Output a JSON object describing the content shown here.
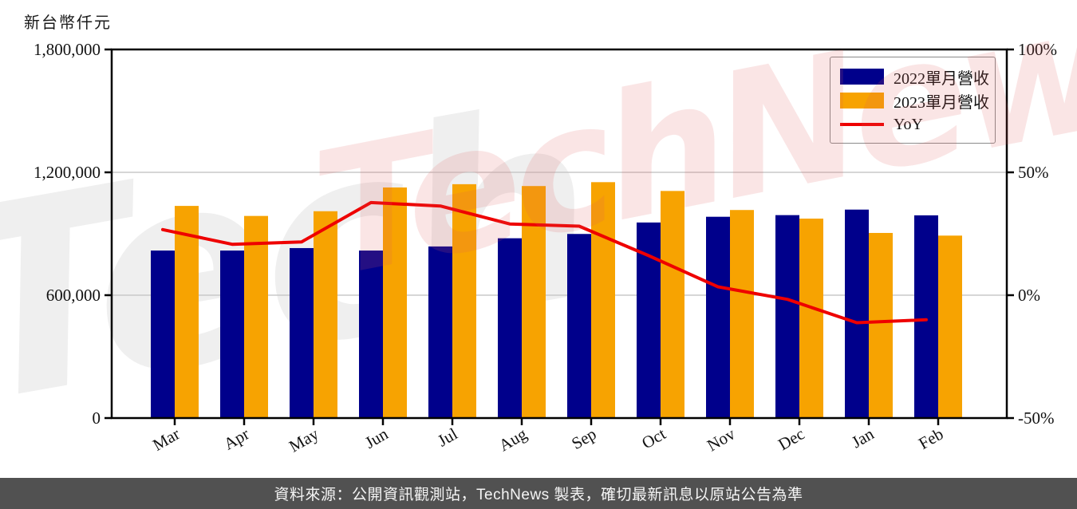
{
  "title": "新台幣仟元",
  "caption": "資料來源：公開資訊觀測站，TechNews 製表，確切最新訊息以原站公告為準",
  "watermark": {
    "gray_text": "Tech",
    "pink_text": "TechNews"
  },
  "colors": {
    "bar_2022": "#00008B",
    "bar_2023": "#F7A301",
    "yoy_line": "#EE0000",
    "grid": "#C9C9C9",
    "axis": "#000000",
    "caption_bg": "#515151",
    "caption_text": "#F5F5F5"
  },
  "legend": [
    {
      "label": "2022單月營收",
      "kind": "swatch",
      "color": "#00008B"
    },
    {
      "label": "2023單月營收",
      "kind": "swatch",
      "color": "#F7A301"
    },
    {
      "label": "YoY",
      "kind": "line",
      "color": "#EE0000"
    }
  ],
  "chart_data": {
    "type": "bar+line",
    "title": "新台幣仟元",
    "categories": [
      "Mar",
      "Apr",
      "May",
      "Jun",
      "Jul",
      "Aug",
      "Sep",
      "Oct",
      "Nov",
      "Dec",
      "Jan",
      "Feb"
    ],
    "series": [
      {
        "name": "2022單月營收",
        "type": "bar",
        "axis": "left",
        "color": "#00008B",
        "values": [
          818000,
          818000,
          830000,
          818000,
          838000,
          878000,
          899000,
          955000,
          983000,
          991000,
          1018000,
          990000
        ]
      },
      {
        "name": "2023單月營收",
        "type": "bar",
        "axis": "left",
        "color": "#F7A301",
        "values": [
          1036000,
          987000,
          1010000,
          1126000,
          1142000,
          1133000,
          1152000,
          1109000,
          1016000,
          974000,
          904000,
          891000
        ]
      },
      {
        "name": "YoY",
        "type": "line",
        "axis": "right",
        "color": "#EE0000",
        "values": [
          26.7,
          20.7,
          21.7,
          37.7,
          36.3,
          29.0,
          28.1,
          16.1,
          3.4,
          -1.7,
          -11.2,
          -10.0
        ]
      }
    ],
    "left_axis": {
      "label": "新台幣仟元",
      "range": [
        0,
        1800000
      ],
      "tick_values": [
        0,
        600000,
        1200000,
        1800000
      ],
      "tick_labels": [
        "0",
        "600,000",
        "1,200,000",
        "1,800,000"
      ]
    },
    "right_axis": {
      "range": [
        -50,
        100
      ],
      "tick_values": [
        -50,
        0,
        50,
        100
      ],
      "tick_labels": [
        "-50%",
        "0%",
        "50%",
        "100%"
      ]
    },
    "grid": true,
    "legend_position": "top-right"
  }
}
